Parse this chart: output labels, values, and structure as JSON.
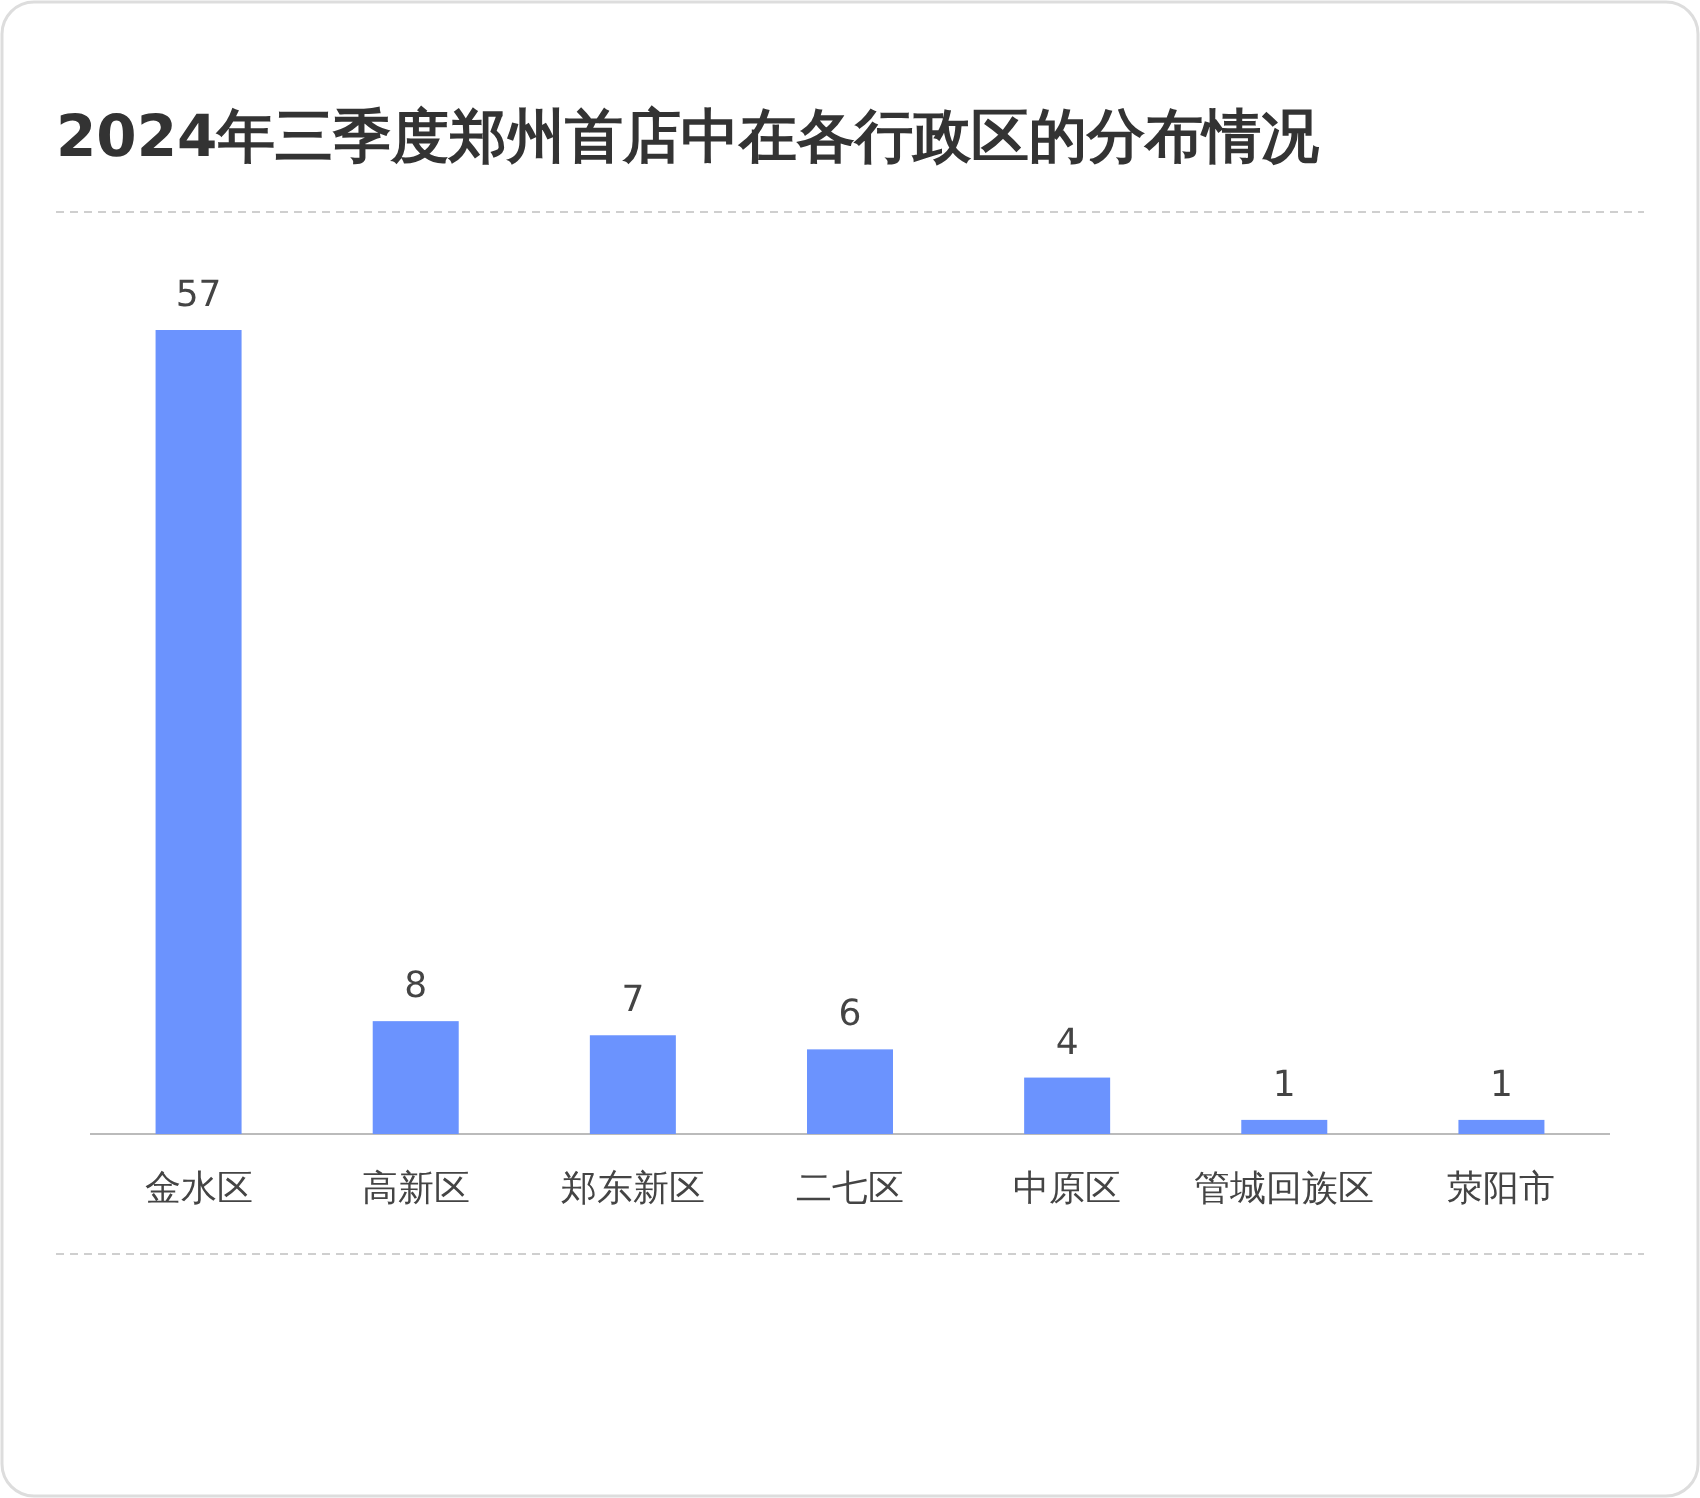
{
  "chart_data": {
    "type": "bar",
    "title": "2024年三季度郑州首店中在各行政区的分布情况",
    "categories": [
      "金水区",
      "高新区",
      "郑东新区",
      "二七区",
      "中原区",
      "管城回族区",
      "荥阳市"
    ],
    "values": [
      57,
      8,
      7,
      6,
      4,
      1,
      1
    ],
    "color": "#6b93fe",
    "data_labels": true
  }
}
